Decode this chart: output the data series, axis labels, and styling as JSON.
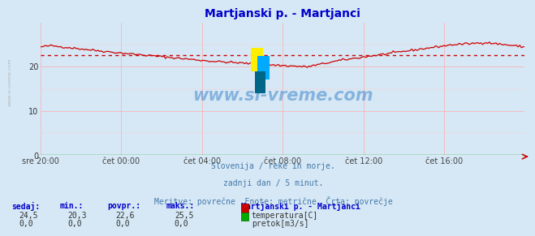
{
  "title": "Martjanski p. - Martjanci",
  "title_color": "#0000cc",
  "bg_color": "#d6e8f5",
  "plot_bg_color": "#d6e8f5",
  "x_labels": [
    "sre 20:00",
    "čet 00:00",
    "čet 04:00",
    "čet 08:00",
    "čet 12:00",
    "čet 16:00"
  ],
  "x_ticks_norm": [
    0.0,
    0.1667,
    0.3333,
    0.5,
    0.6667,
    0.8333
  ],
  "y_ticks": [
    0,
    10,
    20
  ],
  "y_lim": [
    0,
    30
  ],
  "x_lim": [
    0,
    1
  ],
  "temp_color": "#cc0000",
  "flow_color": "#00aa00",
  "avg_color": "#cc0000",
  "avg_value": 22.6,
  "watermark": "www.si-vreme.com",
  "watermark_color": "#4488cc",
  "subtitle1": "Slovenija / reke in morje.",
  "subtitle2": "zadnji dan / 5 minut.",
  "subtitle3": "Meritve: povrečne  Enote: metrične  Črta: povrečje",
  "subtitle_color": "#4477aa",
  "label_color": "#0000cc",
  "stats_headers": [
    "sedaj:",
    "min.:",
    "povpr.:",
    "maks.:"
  ],
  "stats_temp": [
    "24,5",
    "20,3",
    "22,6",
    "25,5"
  ],
  "stats_flow": [
    "0,0",
    "0,0",
    "0,0",
    "0,0"
  ],
  "legend_title": "Martjanski p. - Martjanci",
  "legend_temp_label": "temperatura[C]",
  "legend_flow_label": "pretok[m3/s]",
  "sidebar_text": "www.si-vreme.com",
  "arrow_color": "#cc0000",
  "grid_v_color": "#ffaaaa",
  "grid_h_color": "#ffaaaa"
}
